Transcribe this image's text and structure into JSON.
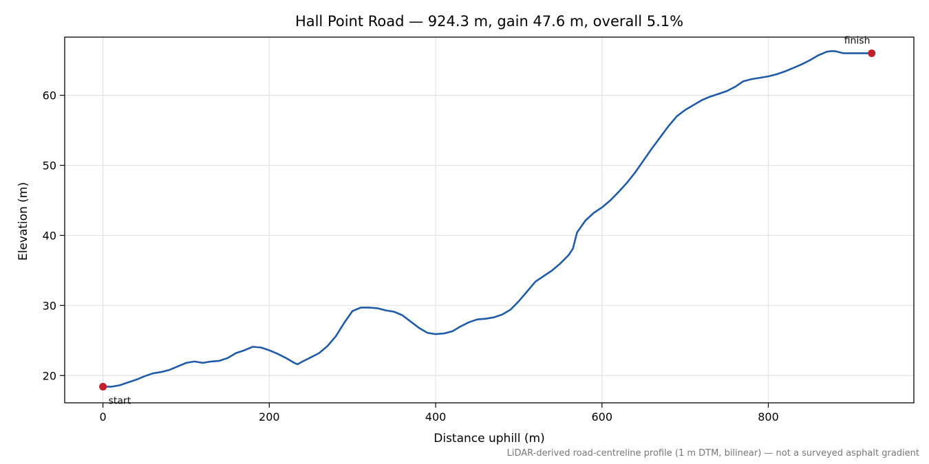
{
  "chart_data": {
    "type": "line",
    "title": "Hall Point Road — 924.3 m, gain 47.6 m, overall 5.1%",
    "xlabel": "Distance uphill (m)",
    "ylabel": "Elevation (m)",
    "footnote": "LiDAR-derived road-centreline profile (1 m DTM, bilinear) — not a surveyed asphalt gradient",
    "xlim": [
      -46,
      975
    ],
    "ylim": [
      16.1,
      68.3
    ],
    "xticks": [
      0,
      200,
      400,
      600,
      800
    ],
    "yticks": [
      20,
      30,
      40,
      50,
      60
    ],
    "grid": true,
    "line_color": "#1f5aa8",
    "marker_color": "#c0202a",
    "series": [
      {
        "x": [
          0,
          10,
          20,
          30,
          40,
          50,
          60,
          70,
          80,
          90,
          100,
          110,
          120,
          130,
          140,
          150,
          160,
          170,
          180,
          190,
          200,
          210,
          220,
          230,
          234,
          240,
          250,
          260,
          270,
          280,
          290,
          300,
          310,
          320,
          330,
          340,
          350,
          360,
          370,
          380,
          390,
          400,
          410,
          420,
          430,
          440,
          450,
          460,
          470,
          480,
          490,
          500,
          510,
          520,
          530,
          540,
          550,
          560,
          565,
          570,
          580,
          590,
          600,
          610,
          620,
          630,
          640,
          650,
          660,
          670,
          680,
          690,
          700,
          710,
          720,
          730,
          740,
          750,
          760,
          770,
          780,
          790,
          800,
          810,
          820,
          830,
          840,
          850,
          860,
          870,
          875,
          880,
          890,
          900,
          910,
          924.3
        ],
        "y": [
          18.4,
          18.4,
          18.6,
          19.0,
          19.4,
          19.9,
          20.3,
          20.5,
          20.8,
          21.3,
          21.8,
          22.0,
          21.8,
          22.0,
          22.1,
          22.5,
          23.2,
          23.6,
          24.1,
          24.0,
          23.6,
          23.1,
          22.5,
          21.8,
          21.6,
          22.0,
          22.6,
          23.2,
          24.2,
          25.6,
          27.5,
          29.2,
          29.7,
          29.7,
          29.6,
          29.3,
          29.1,
          28.6,
          27.7,
          26.8,
          26.1,
          25.9,
          26.0,
          26.3,
          27.0,
          27.6,
          28.0,
          28.1,
          28.3,
          28.7,
          29.4,
          30.6,
          32.0,
          33.4,
          34.2,
          35.0,
          36.0,
          37.2,
          38.1,
          40.4,
          42.1,
          43.2,
          44.0,
          45.0,
          46.2,
          47.5,
          49.0,
          50.7,
          52.4,
          54.0,
          55.6,
          57.0,
          57.9,
          58.6,
          59.3,
          59.8,
          60.2,
          60.6,
          61.2,
          62.0,
          62.3,
          62.5,
          62.7,
          63.0,
          63.4,
          63.9,
          64.4,
          65.0,
          65.7,
          66.2,
          66.3,
          66.3,
          66.0,
          66.0,
          66.0,
          66.0
        ]
      }
    ],
    "annotations": [
      {
        "label": "start",
        "x": 0,
        "y": 18.4
      },
      {
        "label": "finish",
        "x": 924.3,
        "y": 66.0
      }
    ]
  }
}
